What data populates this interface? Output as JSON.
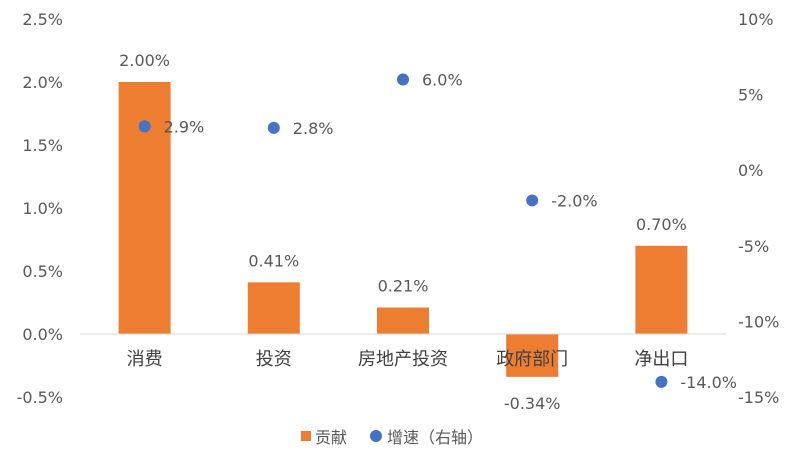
{
  "chart_data": {
    "type": "bar",
    "categories": [
      "消费",
      "投资",
      "房地产投资",
      "政府部门",
      "净出口"
    ],
    "series": [
      {
        "name": "贡献",
        "type": "bar",
        "axis": "left",
        "values": [
          2.0,
          0.41,
          0.21,
          -0.34,
          0.7
        ],
        "labels": [
          "2.00%",
          "0.41%",
          "0.21%",
          "-0.34%",
          "0.70%"
        ],
        "color": "#ED7D31"
      },
      {
        "name": "增速（右轴）",
        "type": "scatter",
        "axis": "right",
        "values": [
          2.9,
          2.8,
          6.0,
          -2.0,
          -14.0
        ],
        "labels": [
          "2.9%",
          "2.8%",
          "6.0%",
          "-2.0%",
          "-14.0%"
        ],
        "color": "#4472C4"
      }
    ],
    "left_axis": {
      "min": -0.5,
      "max": 2.5,
      "ticks": [
        2.5,
        2.0,
        1.5,
        1.0,
        0.5,
        0.0,
        -0.5
      ],
      "tick_labels": [
        "2.5%",
        "2.0%",
        "1.5%",
        "1.0%",
        "0.5%",
        "0.0%",
        "-0.5%"
      ]
    },
    "right_axis": {
      "min": -15,
      "max": 10,
      "ticks": [
        10,
        5,
        0,
        -5,
        -10,
        -15
      ],
      "tick_labels": [
        "10%",
        "5%",
        "0%",
        "-5%",
        "-10%",
        "-15%"
      ]
    },
    "legend": {
      "position": "bottom",
      "items": [
        "贡献",
        "增速（右轴）"
      ]
    },
    "grid": false
  }
}
